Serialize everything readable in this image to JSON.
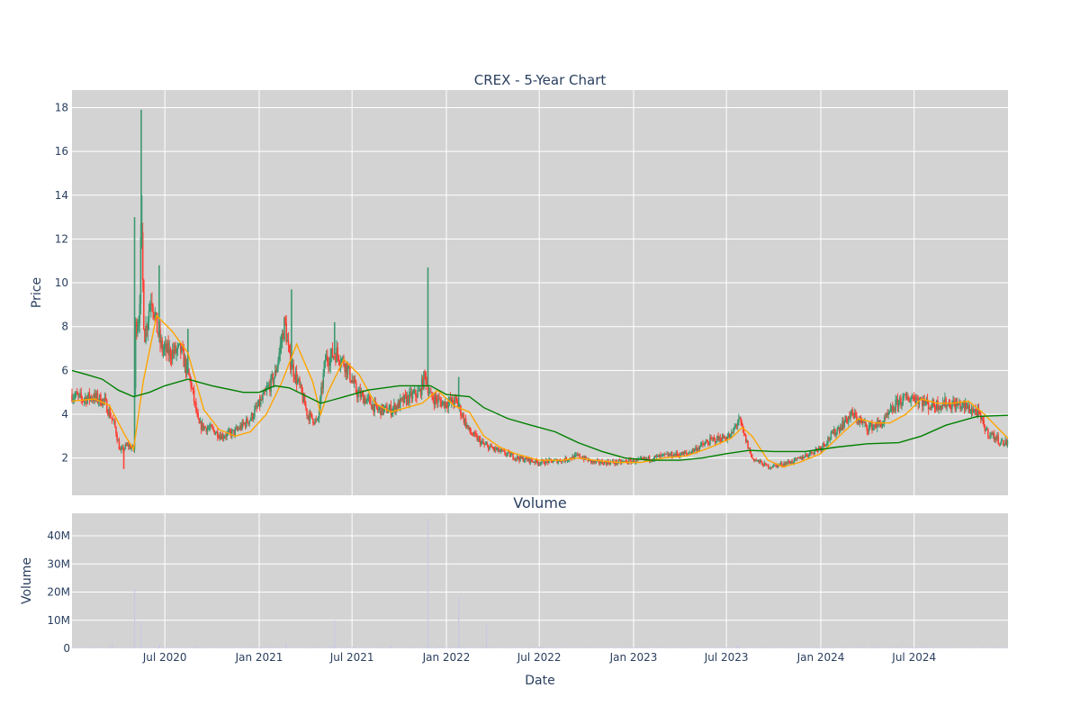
{
  "chart_data": [
    {
      "type": "candlestick",
      "title": "CREX - 5-Year Chart",
      "ylabel": "Price",
      "ylim": [
        0.3,
        18.8
      ],
      "yticks": [
        2,
        4,
        6,
        8,
        10,
        12,
        14,
        16,
        18
      ],
      "grid": true,
      "legend": "none",
      "colors": {
        "up": "#3d9970",
        "down": "#ff4136",
        "ma_short": "#ffa500",
        "ma_long": "#008000",
        "plot_bg": "#d3d3d3"
      },
      "series": [
        {
          "name": "",
          "kind": "close_path",
          "points": [
            [
              "2020-01-02",
              4.9
            ],
            [
              "2020-01-20",
              4.7
            ],
            [
              "2020-02-10",
              4.8
            ],
            [
              "2020-03-05",
              4.6
            ],
            [
              "2020-03-25",
              3.5
            ],
            [
              "2020-04-05",
              2.3
            ],
            [
              "2020-04-20",
              2.6
            ],
            [
              "2020-05-01",
              2.4
            ],
            [
              "2020-05-05",
              8.0
            ],
            [
              "2020-05-12",
              8.5
            ],
            [
              "2020-05-16",
              12.5
            ],
            [
              "2020-05-22",
              7.5
            ],
            [
              "2020-06-05",
              9.5
            ],
            [
              "2020-06-15",
              8.0
            ],
            [
              "2020-06-25",
              7.0
            ],
            [
              "2020-07-10",
              6.8
            ],
            [
              "2020-08-01",
              6.9
            ],
            [
              "2020-08-20",
              5.5
            ],
            [
              "2020-09-05",
              3.5
            ],
            [
              "2020-10-01",
              3.3
            ],
            [
              "2020-10-20",
              3.0
            ],
            [
              "2020-11-15",
              3.2
            ],
            [
              "2020-12-15",
              3.8
            ],
            [
              "2021-01-10",
              4.8
            ],
            [
              "2021-02-01",
              5.8
            ],
            [
              "2021-02-20",
              8.2
            ],
            [
              "2021-03-01",
              6.5
            ],
            [
              "2021-03-20",
              5.3
            ],
            [
              "2021-04-05",
              4.0
            ],
            [
              "2021-04-25",
              3.6
            ],
            [
              "2021-05-10",
              6.5
            ],
            [
              "2021-06-01",
              6.8
            ],
            [
              "2021-06-20",
              6.2
            ],
            [
              "2021-07-10",
              5.0
            ],
            [
              "2021-08-01",
              4.6
            ],
            [
              "2021-08-20",
              4.2
            ],
            [
              "2021-09-15",
              4.2
            ],
            [
              "2021-10-15",
              4.7
            ],
            [
              "2021-11-10",
              5.0
            ],
            [
              "2021-11-20",
              5.8
            ],
            [
              "2021-12-01",
              4.8
            ],
            [
              "2021-12-25",
              4.5
            ],
            [
              "2022-01-20",
              4.6
            ],
            [
              "2022-02-15",
              3.2
            ],
            [
              "2022-03-15",
              2.6
            ],
            [
              "2022-04-15",
              2.3
            ],
            [
              "2022-05-20",
              2.0
            ],
            [
              "2022-07-01",
              1.8
            ],
            [
              "2022-08-15",
              1.9
            ],
            [
              "2022-09-15",
              2.1
            ],
            [
              "2022-10-15",
              1.8
            ],
            [
              "2022-12-01",
              1.8
            ],
            [
              "2023-01-15",
              1.9
            ],
            [
              "2023-03-01",
              2.1
            ],
            [
              "2023-04-15",
              2.2
            ],
            [
              "2023-06-01",
              2.8
            ],
            [
              "2023-07-10",
              3.0
            ],
            [
              "2023-07-25",
              3.8
            ],
            [
              "2023-08-05",
              3.0
            ],
            [
              "2023-08-20",
              2.0
            ],
            [
              "2023-09-20",
              1.6
            ],
            [
              "2023-10-15",
              1.7
            ],
            [
              "2023-11-15",
              1.9
            ],
            [
              "2024-01-01",
              2.5
            ],
            [
              "2024-02-10",
              3.5
            ],
            [
              "2024-03-01",
              4.0
            ],
            [
              "2024-04-01",
              3.4
            ],
            [
              "2024-05-01",
              3.6
            ],
            [
              "2024-06-01",
              4.6
            ],
            [
              "2024-07-01",
              4.8
            ],
            [
              "2024-08-01",
              4.4
            ],
            [
              "2024-09-01",
              4.5
            ],
            [
              "2024-10-01",
              4.4
            ],
            [
              "2024-11-01",
              4.1
            ],
            [
              "2024-11-20",
              3.2
            ],
            [
              "2024-12-20",
              2.7
            ]
          ],
          "spikes": [
            [
              "2020-05-03",
              13.0
            ],
            [
              "2020-05-16",
              17.9
            ],
            [
              "2020-05-17",
              14.0
            ],
            [
              "2020-06-20",
              10.8
            ],
            [
              "2020-08-15",
              7.9
            ],
            [
              "2021-03-05",
              9.7
            ],
            [
              "2021-05-28",
              8.2
            ],
            [
              "2021-11-26",
              10.7
            ],
            [
              "2022-01-25",
              5.7
            ],
            [
              "2020-04-12",
              1.5
            ]
          ]
        },
        {
          "name": "",
          "kind": "moving_average",
          "color": "#ffa500",
          "points": [
            [
              "2020-01-02",
              4.6
            ],
            [
              "2020-02-15",
              4.7
            ],
            [
              "2020-03-15",
              4.4
            ],
            [
              "2020-04-15",
              3.0
            ],
            [
              "2020-05-01",
              2.4
            ],
            [
              "2020-05-20",
              5.5
            ],
            [
              "2020-06-15",
              8.5
            ],
            [
              "2020-07-15",
              7.8
            ],
            [
              "2020-08-15",
              6.8
            ],
            [
              "2020-09-15",
              4.2
            ],
            [
              "2020-10-15",
              3.3
            ],
            [
              "2020-11-15",
              3.0
            ],
            [
              "2020-12-15",
              3.2
            ],
            [
              "2021-01-15",
              4.0
            ],
            [
              "2021-02-15",
              5.5
            ],
            [
              "2021-03-15",
              7.2
            ],
            [
              "2021-04-15",
              5.5
            ],
            [
              "2021-05-01",
              4.0
            ],
            [
              "2021-05-15",
              5.0
            ],
            [
              "2021-06-15",
              6.5
            ],
            [
              "2021-07-15",
              5.8
            ],
            [
              "2021-08-15",
              4.5
            ],
            [
              "2021-09-15",
              4.1
            ],
            [
              "2021-10-15",
              4.3
            ],
            [
              "2021-11-15",
              4.5
            ],
            [
              "2021-12-15",
              5.1
            ],
            [
              "2022-01-15",
              4.4
            ],
            [
              "2022-02-15",
              4.1
            ],
            [
              "2022-03-15",
              3.0
            ],
            [
              "2022-04-15",
              2.5
            ],
            [
              "2022-05-15",
              2.2
            ],
            [
              "2022-07-01",
              1.9
            ],
            [
              "2022-08-15",
              1.9
            ],
            [
              "2022-09-15",
              2.0
            ],
            [
              "2022-10-15",
              1.9
            ],
            [
              "2022-12-01",
              1.8
            ],
            [
              "2023-01-15",
              1.8
            ],
            [
              "2023-03-01",
              2.0
            ],
            [
              "2023-04-15",
              2.1
            ],
            [
              "2023-06-01",
              2.5
            ],
            [
              "2023-07-10",
              2.9
            ],
            [
              "2023-08-01",
              3.4
            ],
            [
              "2023-08-20",
              3.0
            ],
            [
              "2023-09-20",
              1.9
            ],
            [
              "2023-10-20",
              1.6
            ],
            [
              "2023-11-20",
              1.8
            ],
            [
              "2024-01-01",
              2.2
            ],
            [
              "2024-02-15",
              3.2
            ],
            [
              "2024-03-15",
              3.8
            ],
            [
              "2024-04-15",
              3.6
            ],
            [
              "2024-05-15",
              3.6
            ],
            [
              "2024-06-15",
              4.0
            ],
            [
              "2024-07-15",
              4.7
            ],
            [
              "2024-08-15",
              4.5
            ],
            [
              "2024-09-15",
              4.5
            ],
            [
              "2024-10-15",
              4.6
            ],
            [
              "2024-11-15",
              4.0
            ],
            [
              "2024-12-31",
              2.9
            ]
          ]
        },
        {
          "name": "",
          "kind": "moving_average",
          "color": "#008000",
          "points": [
            [
              "2020-01-02",
              6.0
            ],
            [
              "2020-02-01",
              5.8
            ],
            [
              "2020-03-01",
              5.6
            ],
            [
              "2020-04-01",
              5.1
            ],
            [
              "2020-05-01",
              4.8
            ],
            [
              "2020-06-01",
              5.0
            ],
            [
              "2020-07-01",
              5.3
            ],
            [
              "2020-08-15",
              5.6
            ],
            [
              "2020-10-01",
              5.3
            ],
            [
              "2020-12-01",
              5.0
            ],
            [
              "2021-01-01",
              5.0
            ],
            [
              "2021-02-01",
              5.3
            ],
            [
              "2021-03-01",
              5.2
            ],
            [
              "2021-05-01",
              4.5
            ],
            [
              "2021-06-01",
              4.7
            ],
            [
              "2021-08-01",
              5.1
            ],
            [
              "2021-10-01",
              5.3
            ],
            [
              "2021-12-01",
              5.3
            ],
            [
              "2022-01-01",
              4.9
            ],
            [
              "2022-02-15",
              4.8
            ],
            [
              "2022-03-15",
              4.3
            ],
            [
              "2022-05-01",
              3.8
            ],
            [
              "2022-06-15",
              3.5
            ],
            [
              "2022-08-01",
              3.2
            ],
            [
              "2022-09-15",
              2.7
            ],
            [
              "2022-11-01",
              2.3
            ],
            [
              "2022-12-15",
              2.0
            ],
            [
              "2023-02-01",
              1.9
            ],
            [
              "2023-04-01",
              1.9
            ],
            [
              "2023-05-15",
              2.0
            ],
            [
              "2023-07-01",
              2.2
            ],
            [
              "2023-08-15",
              2.35
            ],
            [
              "2023-10-01",
              2.3
            ],
            [
              "2023-12-01",
              2.3
            ],
            [
              "2024-02-01",
              2.5
            ],
            [
              "2024-04-01",
              2.65
            ],
            [
              "2024-06-01",
              2.7
            ],
            [
              "2024-07-15",
              3.0
            ],
            [
              "2024-09-01",
              3.5
            ],
            [
              "2024-11-01",
              3.9
            ],
            [
              "2024-12-31",
              3.95
            ]
          ]
        }
      ]
    },
    {
      "type": "bar",
      "title": "Volume",
      "xlabel": "Date",
      "ylabel": "Volume",
      "ylim": [
        0,
        48000000
      ],
      "yticks": [
        0,
        10000000,
        20000000,
        30000000,
        40000000
      ],
      "ytick_labels": [
        "0",
        "10M",
        "20M",
        "30M",
        "40M"
      ],
      "xlim": [
        "2020-01-02",
        "2024-12-31"
      ],
      "xticks": [
        "2020-07-01",
        "2021-01-01",
        "2021-07-01",
        "2022-01-01",
        "2022-07-01",
        "2023-01-01",
        "2023-07-01",
        "2024-01-01",
        "2024-07-01"
      ],
      "xtick_labels": [
        "Jul 2020",
        "Jan 2021",
        "Jul 2021",
        "Jan 2022",
        "Jul 2022",
        "Jan 2023",
        "Jul 2023",
        "Jan 2024",
        "Jul 2024"
      ],
      "grid": true,
      "colors": {
        "bar": "#c8c8e6",
        "plot_bg": "#d3d3d3"
      },
      "x": [
        "2020-03-20",
        "2020-05-03",
        "2020-05-16",
        "2020-06-20",
        "2020-09-01",
        "2020-12-20",
        "2021-02-22",
        "2021-05-28",
        "2021-09-15",
        "2021-11-26",
        "2022-01-25",
        "2022-03-20",
        "2022-07-01",
        "2023-07-25",
        "2024-06-01"
      ],
      "values": [
        1500000,
        21000000,
        9500000,
        1500000,
        800000,
        800000,
        2000000,
        10000000,
        1000000,
        46000000,
        18000000,
        9000000,
        600000,
        900000,
        700000
      ]
    }
  ]
}
